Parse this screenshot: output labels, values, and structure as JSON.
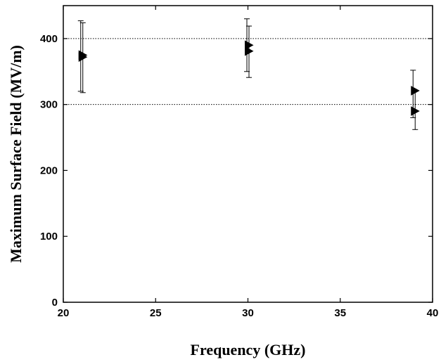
{
  "chart_data": {
    "type": "scatter",
    "title": "",
    "xlabel": "Frequency (GHz)",
    "ylabel": "Maximum Surface Field (MV/m)",
    "xlim": [
      20,
      40
    ],
    "ylim": [
      0,
      450
    ],
    "xticks": [
      20,
      25,
      30,
      35,
      40
    ],
    "yticks": [
      0,
      100,
      200,
      300,
      400
    ],
    "grid": false,
    "reference_lines_y": [
      300,
      400
    ],
    "series": [
      {
        "marker": "right-triangle",
        "points": [
          {
            "x": 21,
            "y": 375,
            "err_low": 320,
            "err_high": 427
          },
          {
            "x": 21,
            "y": 372,
            "err_low": 318,
            "err_high": 424
          },
          {
            "x": 30,
            "y": 390,
            "err_low": 350,
            "err_high": 430
          },
          {
            "x": 30,
            "y": 381,
            "err_low": 341,
            "err_high": 419
          },
          {
            "x": 39,
            "y": 321,
            "err_low": 280,
            "err_high": 352
          },
          {
            "x": 39,
            "y": 290,
            "err_low": 262,
            "err_high": 320
          }
        ]
      }
    ]
  }
}
